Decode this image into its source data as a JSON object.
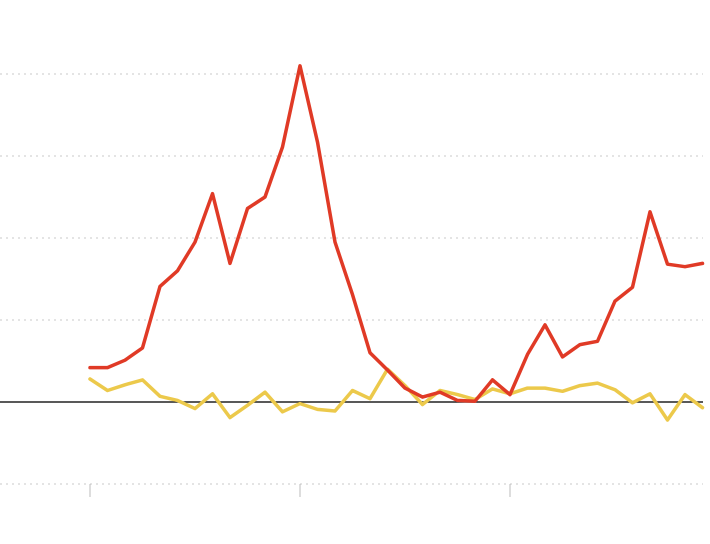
{
  "chart_data": {
    "type": "line",
    "title": "",
    "xlabel": "",
    "ylabel": "",
    "grid": true,
    "ylim": [
      -1,
      4
    ],
    "y_gridlines": [
      -1,
      1,
      2,
      3,
      4
    ],
    "baseline": 0,
    "x_ticks": [
      0,
      12,
      24
    ],
    "series": [
      {
        "color": "#e03a26",
        "values": [
          0.42,
          0.42,
          0.51,
          0.66,
          1.41,
          1.6,
          1.95,
          2.54,
          1.69,
          2.36,
          2.5,
          3.11,
          4.1,
          3.17,
          1.95,
          1.31,
          0.6,
          0.39,
          0.17,
          0.06,
          0.12,
          0.02,
          0.01,
          0.27,
          0.09,
          0.58,
          0.94,
          0.55,
          0.7,
          0.74,
          1.23,
          1.4,
          2.32,
          1.68,
          1.65,
          1.69
        ]
      },
      {
        "color": "#ecc94b",
        "values": [
          0.28,
          0.14,
          0.21,
          0.27,
          0.07,
          0.02,
          -0.08,
          0.1,
          -0.19,
          -0.04,
          0.12,
          -0.12,
          -0.02,
          -0.09,
          -0.11,
          0.14,
          0.04,
          0.4,
          0.2,
          -0.03,
          0.14,
          0.09,
          0.03,
          0.16,
          0.1,
          0.17,
          0.17,
          0.13,
          0.2,
          0.23,
          0.15,
          -0.01,
          0.1,
          -0.22,
          0.09,
          -0.07
        ]
      }
    ]
  }
}
